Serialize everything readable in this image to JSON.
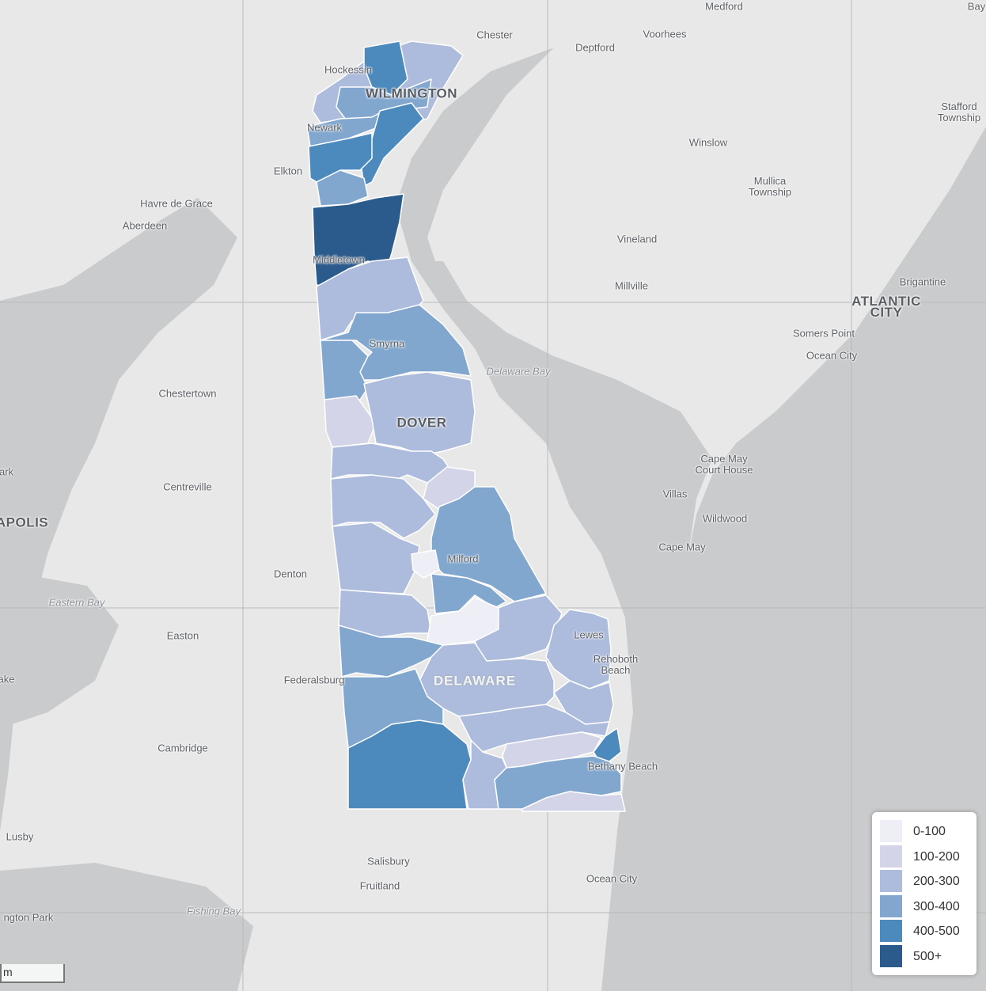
{
  "map": {
    "colors": {
      "water": "#c9cbcc",
      "land": "#e8e8e8",
      "border": "#ffffff"
    },
    "place_labels": [
      {
        "text": "Medford",
        "type": "town"
      },
      {
        "text": "Bay",
        "type": "town"
      },
      {
        "text": "Chester",
        "type": "town"
      },
      {
        "text": "Voorhees",
        "type": "town"
      },
      {
        "text": "Deptford",
        "type": "town"
      },
      {
        "text": "Hockessin",
        "type": "town"
      },
      {
        "text": "WILMINGTON",
        "type": "city"
      },
      {
        "text": "Stafford\nTownship",
        "type": "town"
      },
      {
        "text": "Newark",
        "type": "town"
      },
      {
        "text": "Winslow",
        "type": "town"
      },
      {
        "text": "Elkton",
        "type": "town"
      },
      {
        "text": "Mullica\nTownship",
        "type": "town"
      },
      {
        "text": "Havre de Grace",
        "type": "town"
      },
      {
        "text": "Aberdeen",
        "type": "town"
      },
      {
        "text": "Vineland",
        "type": "town"
      },
      {
        "text": "Middletown",
        "type": "town"
      },
      {
        "text": "Millville",
        "type": "town"
      },
      {
        "text": "Brigantine",
        "type": "town"
      },
      {
        "text": "ATLANTIC\nCITY",
        "type": "city"
      },
      {
        "text": "Somers Point",
        "type": "town"
      },
      {
        "text": "Smyrna",
        "type": "town"
      },
      {
        "text": "Ocean City",
        "type": "town"
      },
      {
        "text": "Delaware Bay",
        "type": "water"
      },
      {
        "text": "Chestertown",
        "type": "town"
      },
      {
        "text": "DOVER",
        "type": "city"
      },
      {
        "text": "Cape May\nCourt House",
        "type": "town"
      },
      {
        "text": "Centreville",
        "type": "town"
      },
      {
        "text": "Villas",
        "type": "town"
      },
      {
        "text": "Wildwood",
        "type": "town"
      },
      {
        "text": "APOLIS",
        "type": "city"
      },
      {
        "text": "Cape May",
        "type": "town"
      },
      {
        "text": "Milford",
        "type": "town"
      },
      {
        "text": "Denton",
        "type": "town"
      },
      {
        "text": "Eastern Bay",
        "type": "water"
      },
      {
        "text": "Easton",
        "type": "town"
      },
      {
        "text": "Lewes",
        "type": "town"
      },
      {
        "text": "Rehoboth\nBeach",
        "type": "town"
      },
      {
        "text": "DELAWARE",
        "type": "state"
      },
      {
        "text": "Federalsburg",
        "type": "town"
      },
      {
        "text": "ake",
        "type": "town"
      },
      {
        "text": "Cambridge",
        "type": "town"
      },
      {
        "text": "Bethany Beach",
        "type": "town"
      },
      {
        "text": "Lusby",
        "type": "town"
      },
      {
        "text": "Salisbury",
        "type": "town"
      },
      {
        "text": "Fruitland",
        "type": "town"
      },
      {
        "text": "Ocean City",
        "type": "town"
      },
      {
        "text": "Fishing Bay",
        "type": "water"
      },
      {
        "text": "ngton Park",
        "type": "town"
      },
      {
        "text": "ark",
        "type": "town"
      }
    ]
  },
  "legend": {
    "items": [
      {
        "label": "0-100",
        "color": "#eeeef6"
      },
      {
        "label": "100-200",
        "color": "#d3d4e7"
      },
      {
        "label": "200-300",
        "color": "#adbcdc"
      },
      {
        "label": "300-400",
        "color": "#81a7cf"
      },
      {
        "label": "400-500",
        "color": "#4c89bc"
      },
      {
        "label": "500+",
        "color": "#2b5a8c"
      }
    ]
  },
  "scale": {
    "label": "m"
  }
}
